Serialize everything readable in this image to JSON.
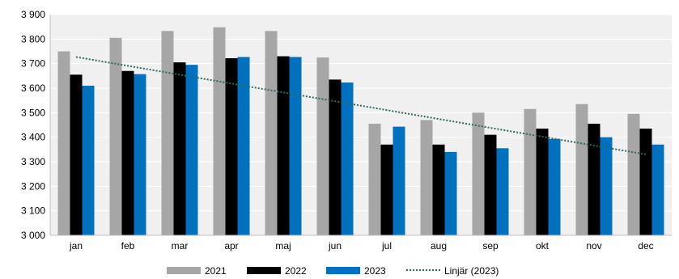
{
  "chart_data": {
    "type": "bar",
    "categories": [
      "jan",
      "feb",
      "mar",
      "apr",
      "maj",
      "jun",
      "jul",
      "aug",
      "sep",
      "okt",
      "nov",
      "dec"
    ],
    "series": [
      {
        "name": "2021",
        "color": "#a6a6a6",
        "values": [
          3750,
          3805,
          3833,
          3848,
          3833,
          3725,
          3455,
          3470,
          3500,
          3515,
          3535,
          3495
        ]
      },
      {
        "name": "2022",
        "color": "#000000",
        "values": [
          3655,
          3670,
          3705,
          3722,
          3730,
          3635,
          3370,
          3370,
          3410,
          3435,
          3455,
          3435
        ]
      },
      {
        "name": "2023",
        "color": "#0070c0",
        "values": [
          3610,
          3657,
          3695,
          3727,
          3727,
          3623,
          3443,
          3340,
          3355,
          3393,
          3400,
          3370
        ]
      }
    ],
    "trendline": {
      "name": "Linjär (2023)",
      "color": "#2e6b5e",
      "start": 3727,
      "end": 3330
    },
    "ylim": [
      3000,
      3900
    ],
    "yticks": [
      3000,
      3100,
      3200,
      3300,
      3400,
      3500,
      3600,
      3700,
      3800,
      3900
    ],
    "ytick_labels": [
      "3 000",
      "3 100",
      "3 200",
      "3 300",
      "3 400",
      "3 500",
      "3 600",
      "3 700",
      "3 800",
      "3 900"
    ],
    "plot_background": "#f0f0f0",
    "grid": true,
    "legend_position": "bottom",
    "title": "",
    "xlabel": "",
    "ylabel": ""
  }
}
